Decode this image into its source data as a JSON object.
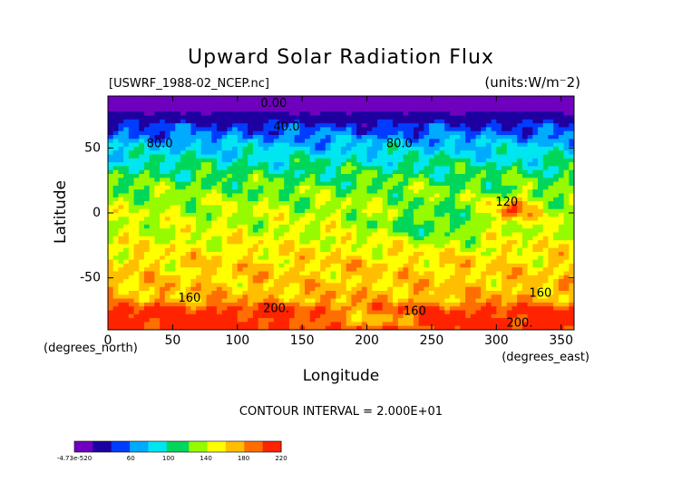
{
  "chart_data": {
    "type": "heatmap",
    "title": "Upward Solar Radiation Flux",
    "file_label": "[USWRF_1988-02_NCEP.nc]",
    "units_label": "(units:W/m⁻2)",
    "xlabel": "Longitude",
    "ylabel": "Latitude",
    "x_unit_label": "(degrees_east)",
    "y_unit_label": "(degrees_north)",
    "xlim": [
      0,
      360
    ],
    "ylim": [
      -90,
      90
    ],
    "xticks": [
      0,
      50,
      100,
      150,
      200,
      250,
      300,
      350
    ],
    "yticks": [
      -50,
      0,
      50
    ],
    "contour_interval_label": "CONTOUR INTERVAL = 2.000E+01",
    "contour_labels": [
      {
        "text": "0.00",
        "lon": 128,
        "lat": 84
      },
      {
        "text": "40.0",
        "lon": 138,
        "lat": 66
      },
      {
        "text": "80.0",
        "lon": 40,
        "lat": 53
      },
      {
        "text": "80.0",
        "lon": 225,
        "lat": 53
      },
      {
        "text": "120",
        "lon": 308,
        "lat": 8
      },
      {
        "text": "160",
        "lon": 63,
        "lat": -66
      },
      {
        "text": "160",
        "lon": 237,
        "lat": -76
      },
      {
        "text": "160",
        "lon": 334,
        "lat": -62
      },
      {
        "text": "200.",
        "lon": 130,
        "lat": -74
      },
      {
        "text": "200.",
        "lon": 318,
        "lat": -85
      }
    ],
    "colorbar": {
      "tick_labels": [
        "-4.73e-520",
        "60",
        "100",
        "140",
        "180",
        "220"
      ],
      "min": 0,
      "max": 220
    }
  },
  "colors": {
    "violet": "#7b00c8",
    "navy": "#1e00a0",
    "blue": "#0050ff",
    "cyan": "#00d2ff",
    "green": "#00dc40",
    "lightgreen": "#a0ff00",
    "yellow": "#ffff00",
    "orange": "#ffaa00",
    "red": "#ff2a00"
  }
}
